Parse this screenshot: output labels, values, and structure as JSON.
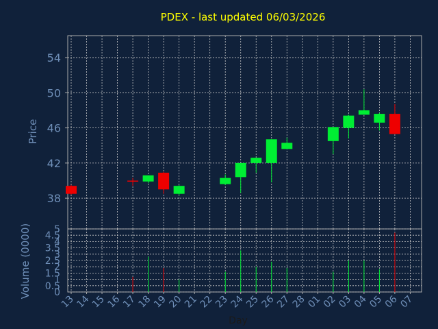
{
  "chart_data": {
    "type": "candlestick",
    "title": "PDEX - last updated 06/03/2026",
    "price_panel": {
      "ylabel": "Price",
      "ylim": [
        34.5,
        56.5
      ],
      "yticks": [
        38,
        42,
        46,
        50,
        54
      ]
    },
    "volume_panel": {
      "ylabel": "Volume (0000)",
      "ylim": [
        0,
        5
      ],
      "yticks": [
        0,
        0.5,
        1,
        1.5,
        2,
        2.5,
        3,
        3.5,
        4,
        4.5,
        5
      ],
      "tick_labels": [
        "0",
        "0.5",
        "1",
        "1.5",
        "2",
        "2.5",
        "3",
        "3.5",
        "4",
        "4.5",
        "5"
      ]
    },
    "xlabel": "Day",
    "x_tick_labels": [
      "13",
      "14",
      "15",
      "16",
      "17",
      "18",
      "19",
      "20",
      "21",
      "22",
      "23",
      "24",
      "25",
      "26",
      "27",
      "28",
      "01",
      "02",
      "03",
      "04",
      "05",
      "06",
      "07"
    ],
    "candles": [
      {
        "day": "13",
        "open": 39.4,
        "high": 39.5,
        "low": 38.4,
        "close": 38.5,
        "volume": 0
      },
      {
        "day": "17",
        "open": 40.0,
        "high": 40.3,
        "low": 39.4,
        "close": 39.9,
        "volume": 1.2
      },
      {
        "day": "18",
        "open": 39.9,
        "high": 40.6,
        "low": 39.7,
        "close": 40.6,
        "volume": 2.8
      },
      {
        "day": "19",
        "open": 40.9,
        "high": 41.0,
        "low": 38.5,
        "close": 39.0,
        "volume": 1.9
      },
      {
        "day": "20",
        "open": 38.5,
        "high": 39.5,
        "low": 38.3,
        "close": 39.4,
        "volume": 1.0
      },
      {
        "day": "23",
        "open": 39.6,
        "high": 40.7,
        "low": 39.5,
        "close": 40.3,
        "volume": 1.6
      },
      {
        "day": "24",
        "open": 40.4,
        "high": 42.0,
        "low": 38.6,
        "close": 42.0,
        "volume": 3.3
      },
      {
        "day": "25",
        "open": 42.0,
        "high": 42.6,
        "low": 40.9,
        "close": 42.6,
        "volume": 2.0
      },
      {
        "day": "26",
        "open": 42.0,
        "high": 44.7,
        "low": 39.8,
        "close": 44.7,
        "volume": 2.4
      },
      {
        "day": "27",
        "open": 43.6,
        "high": 44.9,
        "low": 43.6,
        "close": 44.3,
        "volume": 1.9
      },
      {
        "day": "02",
        "open": 44.5,
        "high": 46.1,
        "low": 43.0,
        "close": 46.1,
        "volume": 1.6
      },
      {
        "day": "03",
        "open": 46.0,
        "high": 47.5,
        "low": 44.8,
        "close": 47.4,
        "volume": 2.5
      },
      {
        "day": "04",
        "open": 47.5,
        "high": 50.4,
        "low": 47.5,
        "close": 48.0,
        "volume": 2.5
      },
      {
        "day": "05",
        "open": 46.6,
        "high": 47.7,
        "low": 45.7,
        "close": 47.6,
        "volume": 1.8
      },
      {
        "day": "06",
        "open": 47.6,
        "high": 48.7,
        "low": 45.3,
        "close": 45.3,
        "volume": 4.7
      }
    ],
    "grid": true,
    "colors": {
      "background": "#10213a",
      "plot_border": "#aaaaaa",
      "grid": "#c8c8c8",
      "axis_text": "#6f8fb8",
      "title": "#ffff00",
      "up": "#00ee33",
      "down": "#ee0000"
    }
  }
}
